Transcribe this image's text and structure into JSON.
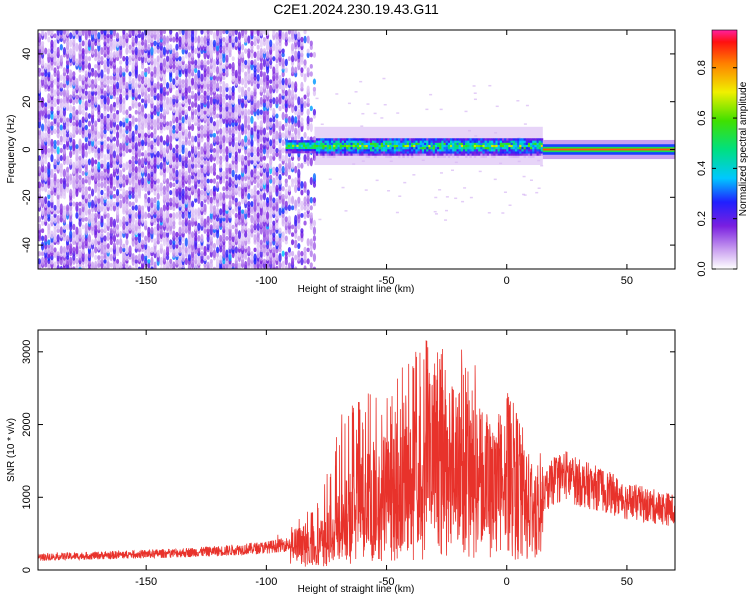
{
  "chart_data": [
    {
      "type": "heatmap",
      "title": "C2E1.2024.230.19.43.G11",
      "xlabel": "Height of straight line (km)",
      "ylabel": "Frequency (Hz)",
      "xlim": [
        -195,
        70
      ],
      "ylim": [
        -50,
        50
      ],
      "x_ticks": [
        "-150",
        "-100",
        "-50",
        "0",
        "50"
      ],
      "x_tick_values": [
        -150,
        -100,
        -50,
        0,
        50
      ],
      "y_ticks": [
        "40",
        "20",
        "0",
        "-20",
        "-40"
      ],
      "y_tick_values": [
        40,
        20,
        0,
        -20,
        -40
      ],
      "colorbar": {
        "label": "Normalized spectral amplitude",
        "range": [
          0,
          0.95
        ],
        "ticks": [
          "0.0",
          "0.2",
          "0.4",
          "0.6",
          "0.8"
        ],
        "tick_values": [
          0,
          0.2,
          0.4,
          0.6,
          0.8
        ]
      },
      "regions": [
        {
          "x_range": [
            -195,
            -80
          ],
          "freq_range": [
            -50,
            50
          ],
          "amplitude": 0.05
        },
        {
          "x_range": [
            -80,
            15
          ],
          "freq_center": 1.5,
          "freq_halfwidth": 4,
          "amplitude": 0.4
        },
        {
          "x_range": [
            15,
            70
          ],
          "freq_center": 0,
          "freq_halfwidth": 2,
          "amplitude": 0.9
        }
      ]
    },
    {
      "type": "line",
      "xlabel": "Height of straight line (km)",
      "ylabel": "SNR (10 * v/v)",
      "xlim": [
        -195,
        70
      ],
      "ylim": [
        0,
        3300
      ],
      "x_ticks": [
        "-150",
        "-100",
        "-50",
        "0",
        "50"
      ],
      "x_tick_values": [
        -150,
        -100,
        -50,
        0,
        50
      ],
      "y_ticks": [
        "0",
        "1000",
        "2000",
        "3000"
      ],
      "y_tick_values": [
        0,
        1000,
        2000,
        3000
      ],
      "color": "#e8322b",
      "series": [
        {
          "x": [
            -195,
            -180,
            -160,
            -140,
            -120,
            -100,
            -90,
            -80,
            -75,
            -70,
            -65,
            -60,
            -55,
            -50,
            -45,
            -40,
            -35,
            -30,
            -25,
            -20,
            -15,
            -10,
            -5,
            0,
            5,
            10,
            15,
            20,
            25,
            30,
            40,
            50,
            60,
            70
          ],
          "values": [
            180,
            190,
            210,
            230,
            260,
            310,
            360,
            430,
            520,
            650,
            850,
            1050,
            1150,
            1200,
            1250,
            1350,
            1450,
            1700,
            1650,
            1550,
            1500,
            1400,
            1250,
            1550,
            1350,
            1050,
            1000,
            1250,
            1300,
            1200,
            1100,
            950,
            880,
            820
          ],
          "peaks": [
            120,
            150,
            200,
            250,
            280,
            380,
            600,
            900,
            1400,
            2200,
            2400,
            2300,
            2600,
            2400,
            2700,
            3150,
            3300,
            3200,
            3250,
            3150,
            3000,
            2500,
            1800,
            2100,
            1750,
            1400,
            1200,
            1550,
            1500,
            1400,
            1300,
            1150,
            1050,
            1000
          ]
        }
      ]
    }
  ]
}
